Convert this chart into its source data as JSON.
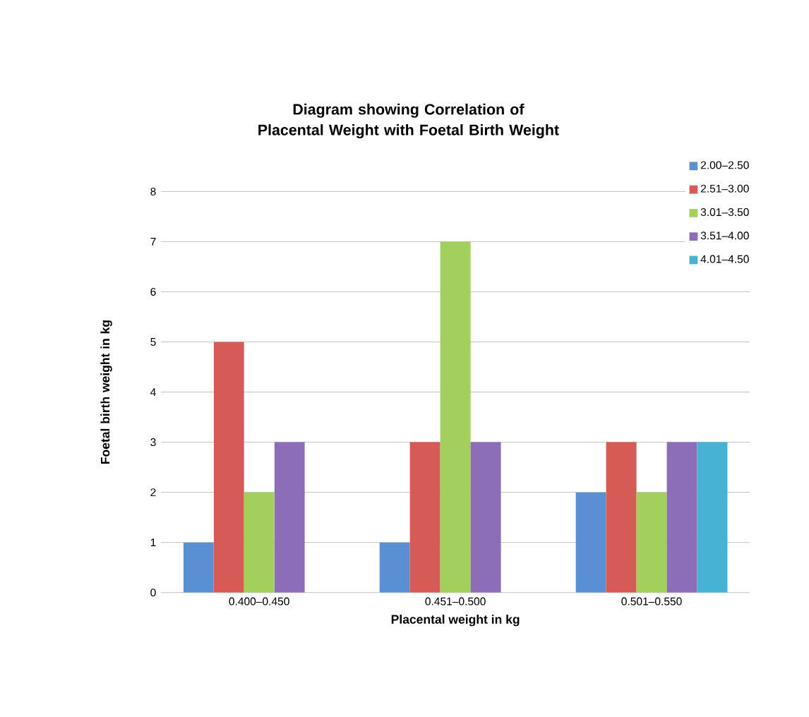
{
  "chart_data": {
    "type": "bar",
    "title": "Diagram showing Correlation of Placental Weight with Foetal Birth Weight",
    "xlabel": "Placental weight in kg",
    "ylabel": "Foetal birth weight in kg",
    "categories": [
      "0.400–0.450",
      "0.451–0.500",
      "0.501–0.550"
    ],
    "series": [
      {
        "name": "2.00–2.50",
        "color": "#5b8fd4",
        "values": [
          1,
          1,
          2
        ]
      },
      {
        "name": "2.51–3.00",
        "color": "#d65b57",
        "values": [
          5,
          3,
          3
        ]
      },
      {
        "name": "3.01–3.50",
        "color": "#a3cf5c",
        "values": [
          2,
          7,
          2
        ]
      },
      {
        "name": "3.51–4.00",
        "color": "#8c6db8",
        "values": [
          3,
          3,
          3
        ]
      },
      {
        "name": "4.01–4.50",
        "color": "#48b2d4",
        "values": [
          null,
          null,
          3
        ]
      }
    ],
    "ylim": [
      0,
      8
    ],
    "yticks": [
      0,
      1,
      2,
      3,
      4,
      5,
      6,
      7,
      8
    ],
    "grid": "y",
    "legend": "top right"
  }
}
